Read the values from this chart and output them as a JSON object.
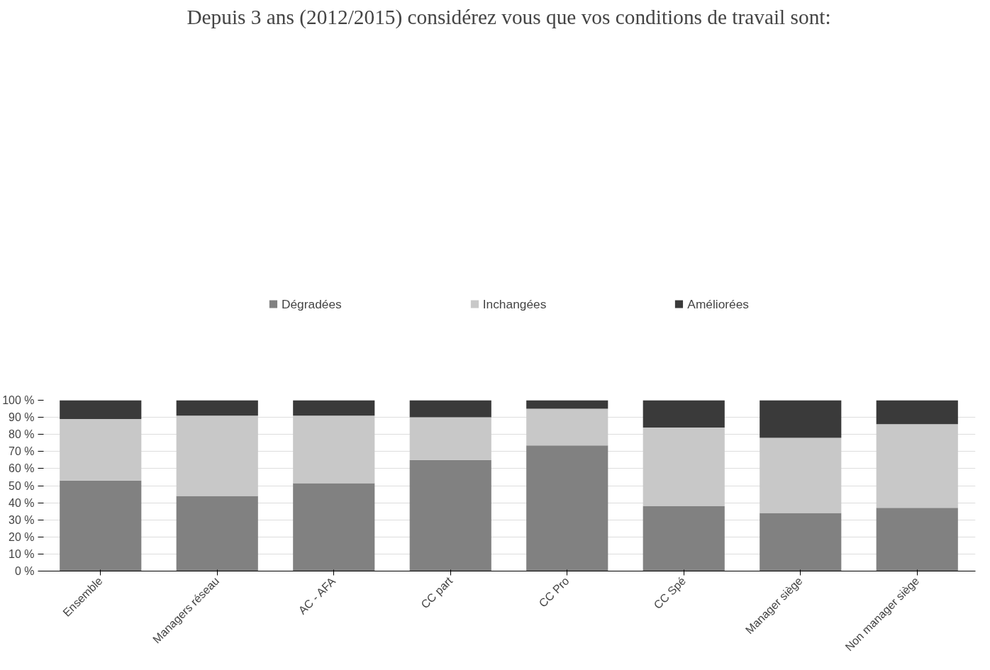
{
  "chart_data": {
    "type": "bar",
    "title": "Depuis 3 ans (2012/2015) considérez vous que vos conditions de travail sont:",
    "categories": [
      "Ensemble",
      "Managers réseau",
      "AC - AFA",
      "CC part",
      "CC Pro",
      "CC Spé",
      "Manager siège",
      "Non manager siège"
    ],
    "stacked": true,
    "series": [
      {
        "name": "Dégradées",
        "color": "#818181",
        "values": [
          53,
          44,
          51.5,
          65,
          73.5,
          38,
          34,
          37
        ]
      },
      {
        "name": "Inchangées",
        "color": "#c8c8c8",
        "values": [
          36,
          47,
          39.5,
          25,
          21.5,
          46,
          44,
          49
        ]
      },
      {
        "name": "Améliorées",
        "color": "#3a3a3a",
        "values": [
          11,
          9,
          9,
          10,
          5,
          16,
          22,
          14
        ]
      }
    ],
    "ylim": [
      0,
      100
    ],
    "yticks": [
      {
        "value": 0,
        "label": "0 %"
      },
      {
        "value": 10,
        "label": "10 %"
      },
      {
        "value": 20,
        "label": "20 %"
      },
      {
        "value": 30,
        "label": "30 %"
      },
      {
        "value": 40,
        "label": "40 %"
      },
      {
        "value": 50,
        "label": "50 %"
      },
      {
        "value": 60,
        "label": "60 %"
      },
      {
        "value": 70,
        "label": "70 %"
      },
      {
        "value": 80,
        "label": "80 %"
      },
      {
        "value": 90,
        "label": "90 %"
      },
      {
        "value": 100,
        "label": "100 %"
      }
    ],
    "grid": "y",
    "legend": "top"
  }
}
